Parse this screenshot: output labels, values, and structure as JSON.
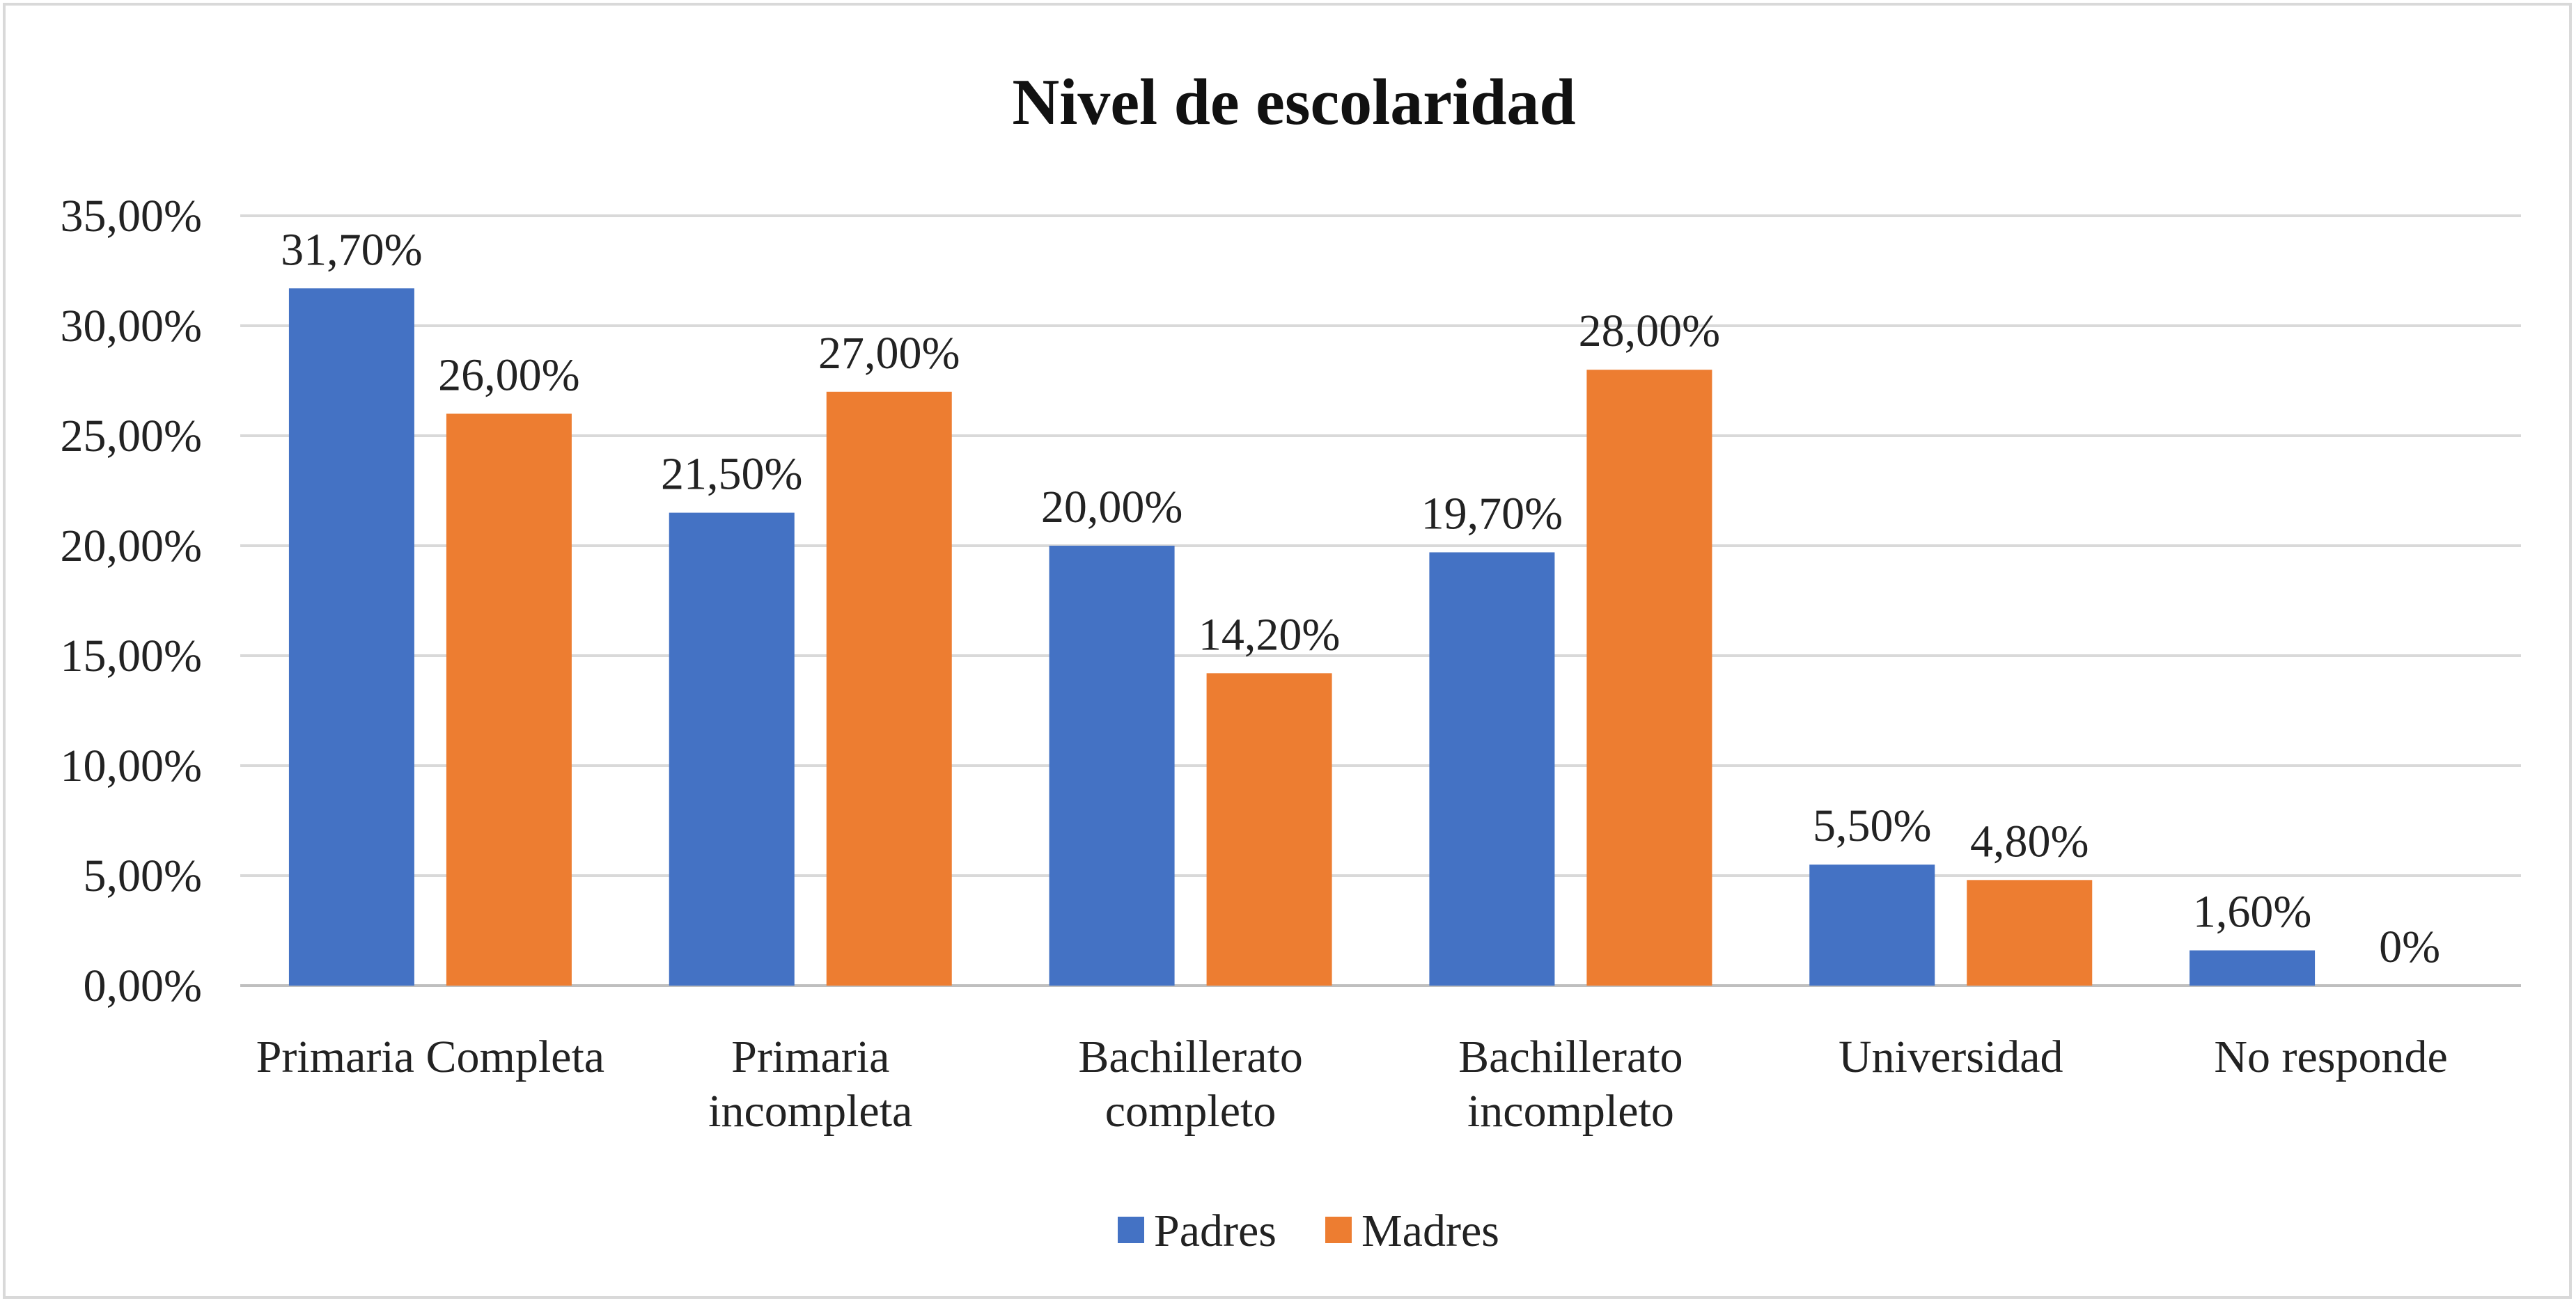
{
  "chart_data": {
    "type": "bar",
    "title": "Nivel de escolaridad",
    "categories": [
      [
        "Primaria Completa"
      ],
      [
        "Primaria",
        "incompleta"
      ],
      [
        "Bachillerato",
        "completo"
      ],
      [
        "Bachillerato",
        "incompleto"
      ],
      [
        "Universidad"
      ],
      [
        "No responde"
      ]
    ],
    "series": [
      {
        "name": "Padres",
        "color": "#4472c4",
        "values": [
          31.7,
          21.5,
          20.0,
          19.7,
          5.5,
          1.6
        ],
        "labels": [
          "31,70%",
          "21,50%",
          "20,00%",
          "19,70%",
          "5,50%",
          "1,60%"
        ]
      },
      {
        "name": "Madres",
        "color": "#ed7d31",
        "values": [
          26.0,
          27.0,
          14.2,
          28.0,
          4.8,
          0
        ],
        "labels": [
          "26,00%",
          "27,00%",
          "14,20%",
          "28,00%",
          "4,80%",
          "0%"
        ]
      }
    ],
    "ylim": [
      0,
      35
    ],
    "yticks": [
      0,
      5,
      10,
      15,
      20,
      25,
      30,
      35
    ],
    "ytick_labels": [
      "0,00%",
      "5,00%",
      "10,00%",
      "15,00%",
      "20,00%",
      "25,00%",
      "30,00%",
      "35,00%"
    ],
    "grid": true,
    "legend_position": "bottom"
  }
}
